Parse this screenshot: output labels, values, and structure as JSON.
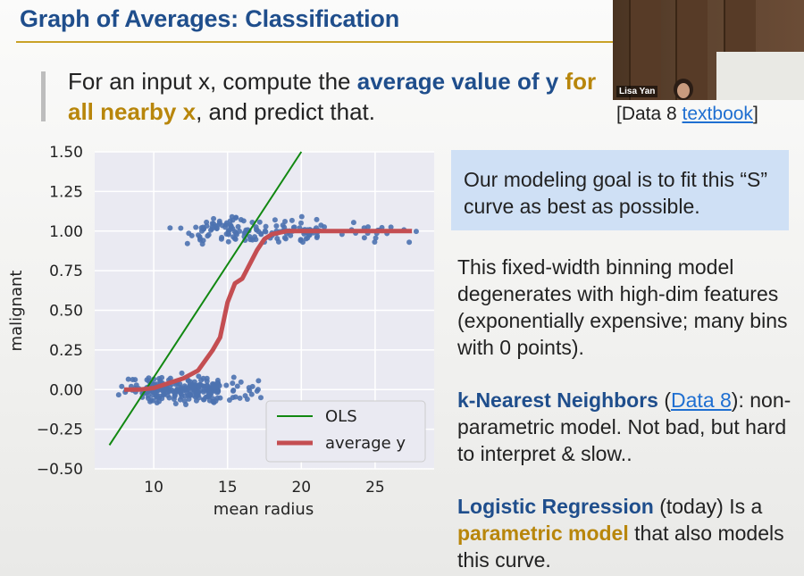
{
  "slide": {
    "title": "Graph of Averages: Classification",
    "lead_part1": "For an input x, compute the ",
    "lead_bold1": "average value of y",
    "lead_space": " ",
    "lead_bold2": "for all nearby x",
    "lead_part2": ", and predict that.",
    "cite_prefix": "[Data 8 ",
    "cite_link": "textbook",
    "cite_suffix": "]"
  },
  "video": {
    "speaker_name": "Lisa Yan"
  },
  "callout": {
    "text": "Our modeling goal is to fit this “S” curve as best as possible."
  },
  "paragraphs": {
    "binning": "This fixed-width binning model degenerates with high-dim features (exponentially expensive; many bins with 0 points).",
    "knn_title": "k-Nearest Neighbors",
    "knn_open": " (",
    "knn_link": "Data 8",
    "knn_rest": "): non-parametric model. Not bad, but hard to interpret & slow..",
    "logreg_title": "Logistic Regression",
    "logreg_mid": " (today) Is a ",
    "logreg_bold": "parametric model",
    "logreg_rest": " that also models this curve."
  },
  "colors": {
    "title": "#1f4e8c",
    "accent_gold": "#b8860b",
    "scatter": "#4c72b0",
    "ols": "#118811",
    "avg": "#c44e52",
    "callout_bg": "#cfe0f5"
  },
  "chart_data": {
    "type": "scatter",
    "xlabel": "mean radius",
    "ylabel": "malignant",
    "xlim": [
      6,
      29
    ],
    "ylim": [
      -0.5,
      1.5
    ],
    "x_ticks": [
      10,
      15,
      20,
      25
    ],
    "y_ticks": [
      1.5,
      1.25,
      1.0,
      0.75,
      0.5,
      0.25,
      0.0,
      -0.25,
      -0.5
    ],
    "y_tick_labels": [
      "1.50",
      "1.25",
      "1.00",
      "0.75",
      "0.50",
      "0.25",
      "0.00",
      "−0.25",
      "−0.50"
    ],
    "grid": true,
    "legend_position": "lower-right",
    "scatter_clusters": [
      {
        "y_center": 0.0,
        "x_range": [
          7.5,
          17.5
        ],
        "dense_range": [
          9.5,
          14.5
        ],
        "count": 260
      },
      {
        "y_center": 1.0,
        "x_range": [
          11,
          28
        ],
        "dense_range": [
          13,
          21.5
        ],
        "count": 170
      }
    ],
    "series": [
      {
        "name": "OLS",
        "type": "line",
        "x": [
          7,
          20
        ],
        "y": [
          -0.35,
          1.5
        ]
      },
      {
        "name": "average y",
        "type": "line",
        "x": [
          8,
          9,
          10,
          11,
          12,
          13,
          14,
          14.5,
          15,
          15.5,
          16,
          17,
          17.5,
          18,
          19,
          20,
          22,
          24,
          26,
          27.5
        ],
        "y": [
          0.0,
          0.0,
          0.01,
          0.04,
          0.07,
          0.12,
          0.25,
          0.33,
          0.55,
          0.67,
          0.7,
          0.88,
          0.95,
          0.98,
          1.0,
          1.0,
          1.0,
          1.0,
          1.0,
          1.0
        ]
      }
    ]
  }
}
